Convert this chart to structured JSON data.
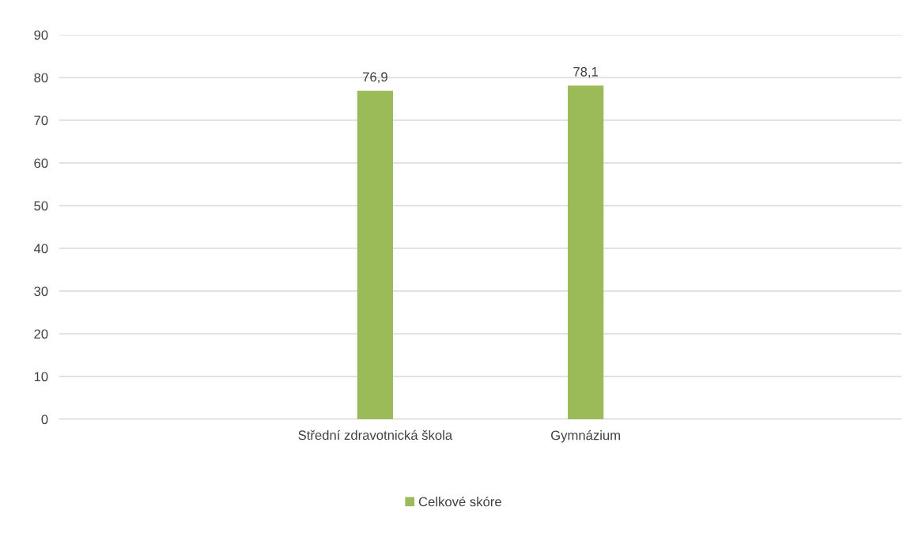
{
  "chart_data": {
    "type": "bar",
    "categories": [
      null,
      "Střední zdravotnická škola",
      "Gymnázium",
      null
    ],
    "series": [
      {
        "name": "Celkové skóre",
        "color": "#9bbb59",
        "values": [
          null,
          76.9,
          78.1,
          null
        ],
        "value_labels": [
          null,
          "76,9",
          "78,1",
          null
        ]
      }
    ],
    "ylim": [
      0,
      90
    ],
    "yticks": [
      0,
      10,
      20,
      30,
      40,
      50,
      60,
      70,
      80,
      90
    ],
    "grid": "y",
    "legend": "bottom"
  }
}
